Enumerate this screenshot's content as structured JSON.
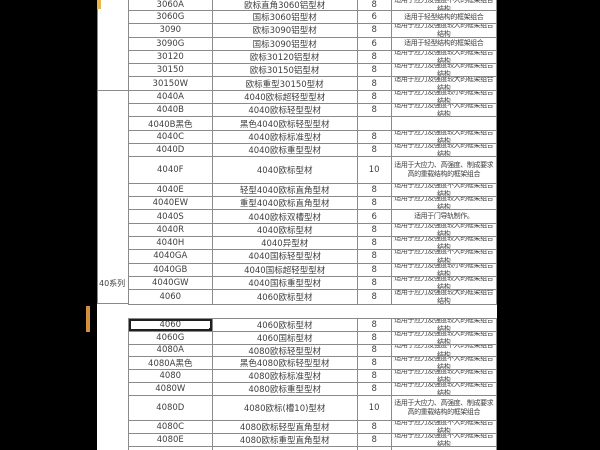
{
  "colors": {
    "page_bg": "#000000",
    "paper_bg": "#ffffff",
    "grid_border": "#8a8a8a",
    "text": "#3f3f3f",
    "selection_border": "#1f1f1f",
    "mark_yellow": "#e8b54b",
    "mark_orange": "#d2903e"
  },
  "gutter": {
    "series_label": "40系列"
  },
  "selection": {
    "selected_cell_value": "4060"
  },
  "table": {
    "block1": {
      "rows": [
        {
          "model": "3060A",
          "name": "欧标直角3060铝型材",
          "qty": "8",
          "desc": "适用于应力及强度不大的框架组合结构",
          "partial": true
        },
        {
          "model": "3060G",
          "name": "国标3060铝型材",
          "qty": "6",
          "desc": "适用于轻型结构的框架组合"
        },
        {
          "model": "3090",
          "name": "欧标3090铝型材",
          "qty": "8",
          "desc": "适用于应力及强度较大的框架组合结构"
        },
        {
          "model": "3090G",
          "name": "国标3090铝型材",
          "qty": "6",
          "desc": "适用于轻型结构的框架组合"
        },
        {
          "model": "30120",
          "name": "欧标30120铝型材",
          "qty": "8",
          "desc": "适用于应力及强度较大的框架组合结构"
        },
        {
          "model": "30150",
          "name": "欧标30150铝型材",
          "qty": "8",
          "desc": "适用于应力及强度较大的框架组合结构"
        },
        {
          "model": "30150W",
          "name": "欧标重型30150型材",
          "qty": "8",
          "desc": "适用于应力及强度较大的框架组合结构"
        },
        {
          "model": "4040A",
          "name": "4040欧标超轻型型材",
          "qty": "8",
          "desc": "适用于应力及强度较小的框架组合结构"
        },
        {
          "model": "4040B",
          "name": "4040欧标轻型型材",
          "qty": "8",
          "desc": "适用于应力及强度不大的框架组合结构"
        },
        {
          "model": "4040B黑色",
          "name": "黑色4040欧标轻型型材",
          "qty": "",
          "desc": ""
        },
        {
          "model": "4040C",
          "name": "4040欧标标准型材",
          "qty": "8",
          "desc": "适用于应力及强度较大的框架组合结构"
        },
        {
          "model": "4040D",
          "name": "4040欧标重型型材",
          "qty": "8",
          "desc": "适用于应力及强度较大的框架组合结构"
        },
        {
          "model": "4040F",
          "name": "4040欧标型材",
          "qty": "10",
          "desc": "适用于大应力、高强度、制成要求高的重载结构的框架组合",
          "tall": true
        },
        {
          "model": "4040E",
          "name": "轻型4040欧标直角型材",
          "qty": "8",
          "desc": "适用于应力及强度不大的框架组合结构"
        },
        {
          "model": "4040EW",
          "name": "重型4040欧标直角型材",
          "qty": "8",
          "desc": "适用于应力及强度较大的框架组合结构"
        },
        {
          "model": "4040S",
          "name": "4040欧标双槽型材",
          "qty": "6",
          "desc": "适用于门导轨制作。"
        },
        {
          "model": "4040R",
          "name": "4040欧标型材",
          "qty": "8",
          "desc": "适用于应力及强度较大的框架组合结构"
        },
        {
          "model": "4040H",
          "name": "4040异型材",
          "qty": "8",
          "desc": "适用于应力及强度较大的框架组合结构"
        },
        {
          "model": "4040GA",
          "name": "4040国标轻型型材",
          "qty": "8",
          "desc": "适用于应力及强度不大的框架组合结构"
        },
        {
          "model": "4040GB",
          "name": "4040国标超轻型型材",
          "qty": "8",
          "desc": "适用于应力及强度较小的框架组合结构"
        },
        {
          "model": "4040GW",
          "name": "4040国标重型型材",
          "qty": "8",
          "desc": "适用于应力及强度较大的框架组合结构"
        },
        {
          "model": "4060",
          "name": "4060欧标型材",
          "qty": "8",
          "desc": "适用于应力及强度较大的框架组合结构"
        }
      ]
    },
    "block2": {
      "rows": [
        {
          "model": "4060",
          "name": "4060欧标型材",
          "qty": "8",
          "desc": "适用于应力及强度较大的框架组合结构",
          "selected": true
        },
        {
          "model": "4060G",
          "name": "4060国标型材",
          "qty": "8",
          "desc": "适用于应力及强度较大的框架组合结构"
        },
        {
          "model": "4080A",
          "name": "4080欧标轻型型材",
          "qty": "8",
          "desc": "适用于应力及强度不大的框架组合结构"
        },
        {
          "model": "4080A黑色",
          "name": "黑色4080欧标轻型型材",
          "qty": "8",
          "desc": "适用于应力及强度不大的框架组合结构"
        },
        {
          "model": "4080",
          "name": "4080欧标标准型材",
          "qty": "8",
          "desc": "适用于应力及强度较大的框架组合结构"
        },
        {
          "model": "4080W",
          "name": "4080欧标重型型材",
          "qty": "8",
          "desc": "适用于应力及强度较大的框架组合结构"
        },
        {
          "model": "4080D",
          "name": "4080欧标(槽10)型材",
          "qty": "10",
          "desc": "适用于大应力、高强度、制成要求高的重载结构的框架组合",
          "tall": true
        },
        {
          "model": "4080C",
          "name": "4080欧标轻型直角型材",
          "qty": "8",
          "desc": "适用于应力及强度不大的框架组合结构"
        },
        {
          "model": "4080E",
          "name": "4080欧标重型直角型材",
          "qty": "8",
          "desc": "适用于应力及强度不大的框架组合结构"
        },
        {
          "model": "",
          "name": "",
          "qty": "",
          "desc": "",
          "partial": true
        }
      ]
    }
  }
}
